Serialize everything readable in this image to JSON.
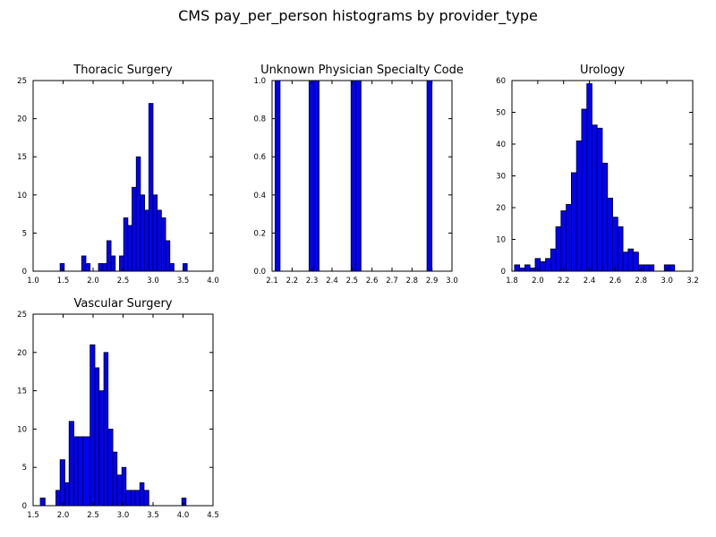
{
  "figure": {
    "title": "CMS pay_per_person histograms by provider_type"
  },
  "chart_data": [
    {
      "type": "bar",
      "title": "Thoracic Surgery",
      "xlim": [
        1.0,
        4.0
      ],
      "ylim": [
        0,
        25
      ],
      "xticks": [
        "1.0",
        "1.5",
        "2.0",
        "2.5",
        "3.0",
        "3.5",
        "4.0"
      ],
      "yticks": [
        "0",
        "5",
        "10",
        "15",
        "20",
        "25"
      ],
      "bar_color": "#0000ff",
      "bins": [
        {
          "x0": 1.45,
          "x1": 1.52,
          "value": 1
        },
        {
          "x0": 1.81,
          "x1": 1.88,
          "value": 2
        },
        {
          "x0": 1.88,
          "x1": 1.95,
          "value": 1
        },
        {
          "x0": 2.09,
          "x1": 2.16,
          "value": 1
        },
        {
          "x0": 2.16,
          "x1": 2.23,
          "value": 1
        },
        {
          "x0": 2.23,
          "x1": 2.3,
          "value": 4
        },
        {
          "x0": 2.3,
          "x1": 2.37,
          "value": 2
        },
        {
          "x0": 2.44,
          "x1": 2.51,
          "value": 2
        },
        {
          "x0": 2.51,
          "x1": 2.58,
          "value": 7
        },
        {
          "x0": 2.58,
          "x1": 2.65,
          "value": 6
        },
        {
          "x0": 2.65,
          "x1": 2.72,
          "value": 11
        },
        {
          "x0": 2.72,
          "x1": 2.79,
          "value": 15
        },
        {
          "x0": 2.79,
          "x1": 2.86,
          "value": 10
        },
        {
          "x0": 2.86,
          "x1": 2.93,
          "value": 8
        },
        {
          "x0": 2.93,
          "x1": 3.0,
          "value": 22
        },
        {
          "x0": 3.0,
          "x1": 3.07,
          "value": 10
        },
        {
          "x0": 3.07,
          "x1": 3.14,
          "value": 8
        },
        {
          "x0": 3.14,
          "x1": 3.21,
          "value": 7
        },
        {
          "x0": 3.21,
          "x1": 3.28,
          "value": 4
        },
        {
          "x0": 3.28,
          "x1": 3.35,
          "value": 1
        },
        {
          "x0": 3.5,
          "x1": 3.57,
          "value": 1
        }
      ]
    },
    {
      "type": "bar",
      "title": "Unknown Physician Specialty Code",
      "xlim": [
        2.1,
        3.0
      ],
      "ylim": [
        0,
        1.0
      ],
      "xticks": [
        "2.1",
        "2.2",
        "2.3",
        "2.4",
        "2.5",
        "2.6",
        "2.7",
        "2.8",
        "2.9",
        "3.0"
      ],
      "yticks": [
        "0.0",
        "0.2",
        "0.4",
        "0.6",
        "0.8",
        "1.0"
      ],
      "bar_color": "#0000ff",
      "bins": [
        {
          "x0": 2.115,
          "x1": 2.14,
          "value": 1
        },
        {
          "x0": 2.285,
          "x1": 2.31,
          "value": 1
        },
        {
          "x0": 2.31,
          "x1": 2.335,
          "value": 1
        },
        {
          "x0": 2.495,
          "x1": 2.52,
          "value": 1
        },
        {
          "x0": 2.52,
          "x1": 2.545,
          "value": 1
        },
        {
          "x0": 2.875,
          "x1": 2.9,
          "value": 1
        }
      ]
    },
    {
      "type": "bar",
      "title": "Urology",
      "xlim": [
        1.8,
        3.2
      ],
      "ylim": [
        0,
        60
      ],
      "xticks": [
        "1.8",
        "2.0",
        "2.2",
        "2.4",
        "2.6",
        "2.8",
        "3.0",
        "3.2"
      ],
      "yticks": [
        "0",
        "10",
        "20",
        "30",
        "40",
        "50",
        "60"
      ],
      "bar_color": "#0000ff",
      "bins": [
        {
          "x0": 1.82,
          "x1": 1.86,
          "value": 2
        },
        {
          "x0": 1.86,
          "x1": 1.9,
          "value": 1
        },
        {
          "x0": 1.9,
          "x1": 1.94,
          "value": 2
        },
        {
          "x0": 1.94,
          "x1": 1.98,
          "value": 1
        },
        {
          "x0": 1.98,
          "x1": 2.02,
          "value": 4
        },
        {
          "x0": 2.02,
          "x1": 2.06,
          "value": 3
        },
        {
          "x0": 2.06,
          "x1": 2.1,
          "value": 4
        },
        {
          "x0": 2.1,
          "x1": 2.14,
          "value": 7
        },
        {
          "x0": 2.14,
          "x1": 2.18,
          "value": 14
        },
        {
          "x0": 2.18,
          "x1": 2.22,
          "value": 19
        },
        {
          "x0": 2.22,
          "x1": 2.26,
          "value": 21
        },
        {
          "x0": 2.26,
          "x1": 2.3,
          "value": 31
        },
        {
          "x0": 2.3,
          "x1": 2.34,
          "value": 41
        },
        {
          "x0": 2.34,
          "x1": 2.38,
          "value": 51
        },
        {
          "x0": 2.38,
          "x1": 2.42,
          "value": 59
        },
        {
          "x0": 2.42,
          "x1": 2.46,
          "value": 46
        },
        {
          "x0": 2.46,
          "x1": 2.5,
          "value": 45
        },
        {
          "x0": 2.5,
          "x1": 2.54,
          "value": 34
        },
        {
          "x0": 2.54,
          "x1": 2.58,
          "value": 23
        },
        {
          "x0": 2.58,
          "x1": 2.62,
          "value": 17
        },
        {
          "x0": 2.62,
          "x1": 2.66,
          "value": 14
        },
        {
          "x0": 2.66,
          "x1": 2.7,
          "value": 6
        },
        {
          "x0": 2.7,
          "x1": 2.74,
          "value": 7
        },
        {
          "x0": 2.74,
          "x1": 2.78,
          "value": 6
        },
        {
          "x0": 2.78,
          "x1": 2.82,
          "value": 2
        },
        {
          "x0": 2.82,
          "x1": 2.86,
          "value": 2
        },
        {
          "x0": 2.86,
          "x1": 2.9,
          "value": 2
        },
        {
          "x0": 2.98,
          "x1": 3.02,
          "value": 2
        },
        {
          "x0": 3.02,
          "x1": 3.06,
          "value": 2
        }
      ]
    },
    {
      "type": "bar",
      "title": "Vascular Surgery",
      "xlim": [
        1.5,
        4.5
      ],
      "ylim": [
        0,
        25
      ],
      "xticks": [
        "1.5",
        "2.0",
        "2.5",
        "3.0",
        "3.5",
        "4.0",
        "4.5"
      ],
      "yticks": [
        "0",
        "5",
        "10",
        "15",
        "20",
        "25"
      ],
      "bar_color": "#0000ff",
      "bins": [
        {
          "x0": 1.62,
          "x1": 1.7,
          "value": 1
        },
        {
          "x0": 1.88,
          "x1": 1.95,
          "value": 2
        },
        {
          "x0": 1.95,
          "x1": 2.03,
          "value": 6
        },
        {
          "x0": 2.03,
          "x1": 2.1,
          "value": 3
        },
        {
          "x0": 2.1,
          "x1": 2.18,
          "value": 11
        },
        {
          "x0": 2.18,
          "x1": 2.25,
          "value": 9
        },
        {
          "x0": 2.25,
          "x1": 2.33,
          "value": 9
        },
        {
          "x0": 2.33,
          "x1": 2.45,
          "value": 9
        },
        {
          "x0": 2.45,
          "x1": 2.53,
          "value": 21
        },
        {
          "x0": 2.53,
          "x1": 2.6,
          "value": 18
        },
        {
          "x0": 2.6,
          "x1": 2.68,
          "value": 15
        },
        {
          "x0": 2.68,
          "x1": 2.75,
          "value": 20
        },
        {
          "x0": 2.75,
          "x1": 2.83,
          "value": 10
        },
        {
          "x0": 2.83,
          "x1": 2.9,
          "value": 7
        },
        {
          "x0": 2.9,
          "x1": 2.98,
          "value": 4
        },
        {
          "x0": 2.98,
          "x1": 3.05,
          "value": 5
        },
        {
          "x0": 3.05,
          "x1": 3.13,
          "value": 2
        },
        {
          "x0": 3.13,
          "x1": 3.2,
          "value": 2
        },
        {
          "x0": 3.2,
          "x1": 3.28,
          "value": 2
        },
        {
          "x0": 3.28,
          "x1": 3.35,
          "value": 3
        },
        {
          "x0": 3.35,
          "x1": 3.43,
          "value": 2
        },
        {
          "x0": 3.98,
          "x1": 4.05,
          "value": 1
        }
      ]
    }
  ]
}
